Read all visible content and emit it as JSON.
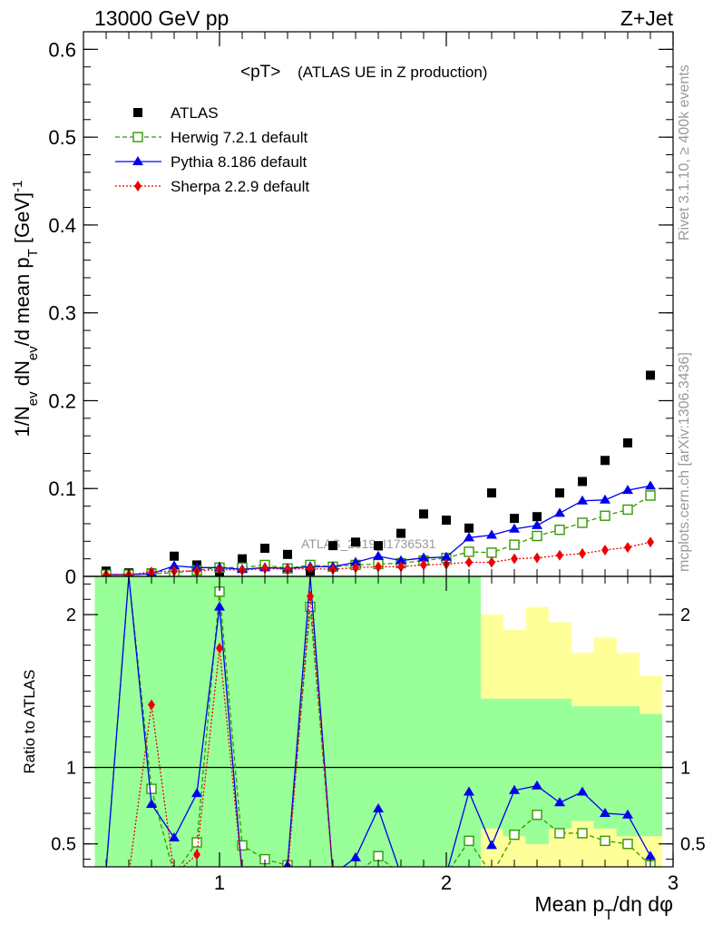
{
  "header": {
    "left": "13000 GeV pp",
    "right": "Z+Jet"
  },
  "side_text": {
    "rivet": "Rivet 3.1.10, ≥ 400k events",
    "mcplots": "mcplots.cern.ch [arXiv:1306.3436]"
  },
  "main_panel": {
    "title_pt": "<pT>",
    "title_desc": "(ATLAS UE in Z production)",
    "watermark": "ATLAS_2019_I1736531",
    "ylabel": "1/N_ev dN_ev/d mean p_T [GeV]^-1"
  },
  "ratio_panel": {
    "ylabel": "Ratio to ATLAS"
  },
  "xaxis_label": "Mean p_T/dη dφ",
  "chart_data": [
    {
      "type": "scatter",
      "title": "<pT> (ATLAS UE in Z production)",
      "xlabel": "Mean p_T/dη dφ",
      "ylabel": "1/N_ev dN_ev/d mean p_T [GeV]^-1",
      "xlim": [
        0.4,
        3.0
      ],
      "ylim": [
        0.0,
        0.62
      ],
      "xticks": [
        1,
        2,
        3
      ],
      "xtick_labels": [
        "1",
        "2",
        "3"
      ],
      "yticks": [
        0,
        0.1,
        0.2,
        0.3,
        0.4,
        0.5,
        0.6
      ],
      "ytick_labels": [
        "0",
        "0.1",
        "0.2",
        "0.3",
        "0.4",
        "0.5",
        "0.6"
      ],
      "legend_position": "top-left",
      "x": [
        0.5,
        0.6,
        0.7,
        0.8,
        0.9,
        1.0,
        1.1,
        1.2,
        1.3,
        1.4,
        1.5,
        1.6,
        1.7,
        1.8,
        1.9,
        2.0,
        2.1,
        2.2,
        2.3,
        2.4,
        2.5,
        2.6,
        2.7,
        2.8,
        2.9
      ],
      "series": [
        {
          "name": "ATLAS",
          "color": "#000000",
          "marker": "square",
          "values": [
            0.006,
            0.004,
            0.004,
            0.023,
            0.013,
            0.005,
            0.02,
            0.032,
            0.025,
            0.006,
            0.035,
            0.039,
            0.035,
            0.049,
            0.071,
            0.064,
            0.055,
            0.095,
            0.066,
            0.068,
            0.095,
            0.108,
            0.132,
            0.152,
            0.229
          ]
        },
        {
          "name": "Herwig 7.2.1 default",
          "color": "#339900",
          "marker": "open-square",
          "line": "dashed",
          "values": [
            0.002,
            0.002,
            0.003,
            0.004,
            0.007,
            0.01,
            0.01,
            0.013,
            0.009,
            0.013,
            0.011,
            0.013,
            0.014,
            0.015,
            0.018,
            0.021,
            0.028,
            0.027,
            0.036,
            0.046,
            0.053,
            0.061,
            0.069,
            0.076,
            0.092
          ]
        },
        {
          "name": "Pythia 8.186 default",
          "color": "#0000ee",
          "marker": "triangle",
          "line": "solid",
          "values": [
            0.002,
            0.002,
            0.003,
            0.012,
            0.01,
            0.01,
            0.008,
            0.01,
            0.009,
            0.011,
            0.011,
            0.016,
            0.023,
            0.018,
            0.021,
            0.022,
            0.044,
            0.047,
            0.054,
            0.058,
            0.072,
            0.086,
            0.087,
            0.098,
            0.103
          ]
        },
        {
          "name": "Sherpa 2.2.9 default",
          "color": "#ee0000",
          "marker": "diamond",
          "line": "dotted",
          "values": [
            0.002,
            0.002,
            0.005,
            0.006,
            0.006,
            0.008,
            0.007,
            0.009,
            0.008,
            0.009,
            0.008,
            0.01,
            0.011,
            0.011,
            0.013,
            0.014,
            0.016,
            0.016,
            0.02,
            0.021,
            0.024,
            0.026,
            0.03,
            0.033,
            0.039
          ]
        }
      ]
    },
    {
      "type": "line",
      "ylabel": "Ratio to ATLAS",
      "xlim": [
        0.4,
        3.0
      ],
      "ylim": [
        0.35,
        2.25
      ],
      "yticks": [
        0.5,
        1,
        2
      ],
      "ytick_labels": [
        "0.5",
        "1",
        "2"
      ],
      "reference_line": 1,
      "x": [
        0.5,
        0.6,
        0.7,
        0.8,
        0.9,
        1.0,
        1.1,
        1.2,
        1.3,
        1.4,
        1.5,
        1.6,
        1.7,
        1.8,
        1.9,
        2.0,
        2.1,
        2.2,
        2.3,
        2.4,
        2.5,
        2.6,
        2.7,
        2.8,
        2.9
      ],
      "bands": [
        {
          "name": "yellow",
          "color": "#ffff99",
          "ranges": [
            [
              0.35,
              2.25
            ],
            [
              0.35,
              2.25
            ],
            [
              0.35,
              2.25
            ],
            [
              0.35,
              2.25
            ],
            [
              0.35,
              2.25
            ],
            [
              0.35,
              2.25
            ],
            [
              0.35,
              2.25
            ],
            [
              0.35,
              2.25
            ],
            [
              0.35,
              2.1
            ],
            [
              0.35,
              2.25
            ],
            [
              0.35,
              2.25
            ],
            [
              0.35,
              2.25
            ],
            [
              0.35,
              2.25
            ],
            [
              0.35,
              2.15
            ],
            [
              0.35,
              2.13
            ],
            [
              0.35,
              2.13
            ],
            [
              0.35,
              2.2
            ],
            [
              0.35,
              2.0
            ],
            [
              0.35,
              1.9
            ],
            [
              0.35,
              2.05
            ],
            [
              0.35,
              1.95
            ],
            [
              0.35,
              1.75
            ],
            [
              0.35,
              1.85
            ],
            [
              0.35,
              1.75
            ],
            [
              0.35,
              1.6
            ]
          ]
        },
        {
          "name": "green",
          "color": "#99ff99",
          "ranges": [
            [
              0.35,
              2.25
            ],
            [
              0.35,
              2.25
            ],
            [
              0.35,
              2.25
            ],
            [
              0.35,
              2.25
            ],
            [
              0.35,
              2.25
            ],
            [
              0.35,
              2.25
            ],
            [
              0.35,
              2.25
            ],
            [
              0.35,
              2.25
            ],
            [
              0.35,
              2.25
            ],
            [
              0.35,
              2.25
            ],
            [
              0.35,
              2.25
            ],
            [
              0.35,
              2.25
            ],
            [
              0.35,
              2.25
            ],
            [
              0.35,
              2.25
            ],
            [
              0.35,
              2.25
            ],
            [
              0.35,
              2.25
            ],
            [
              0.35,
              2.25
            ],
            [
              0.6,
              1.45
            ],
            [
              0.55,
              1.45
            ],
            [
              0.5,
              1.45
            ],
            [
              0.6,
              1.45
            ],
            [
              0.65,
              1.4
            ],
            [
              0.6,
              1.4
            ],
            [
              0.55,
              1.4
            ],
            [
              0.55,
              1.35
            ]
          ]
        }
      ],
      "series": [
        {
          "name": "Herwig 7.2.1 default",
          "color": "#339900",
          "marker": "open-square",
          "line": "dashed",
          "values": [
            0.33,
            2.25,
            0.86,
            0.3,
            0.51,
            2.15,
            0.49,
            0.4,
            0.36,
            2.05,
            0.31,
            0.3,
            0.42,
            0.3,
            0.3,
            0.3,
            0.52,
            0.3,
            0.56,
            0.69,
            0.57,
            0.57,
            0.52,
            0.5,
            0.36
          ]
        },
        {
          "name": "Pythia 8.186 default",
          "color": "#0000ee",
          "marker": "triangle",
          "line": "solid",
          "values": [
            0.33,
            2.25,
            0.76,
            0.54,
            0.83,
            2.05,
            0.3,
            0.3,
            0.36,
            2.25,
            0.3,
            0.41,
            0.73,
            0.3,
            0.3,
            0.3,
            0.84,
            0.49,
            0.85,
            0.88,
            0.77,
            0.84,
            0.7,
            0.69,
            0.42
          ]
        },
        {
          "name": "Sherpa 2.2.9 default",
          "color": "#ee0000",
          "marker": "diamond",
          "line": "dotted",
          "values": [
            0.3,
            0.3,
            1.41,
            0.3,
            0.43,
            1.78,
            0.3,
            0.3,
            0.3,
            2.12,
            0.3,
            0.3,
            0.3,
            0.3,
            0.3,
            0.3,
            0.3,
            0.3,
            0.3,
            0.3,
            0.3,
            0.3,
            0.3,
            0.3,
            0.3
          ]
        }
      ]
    }
  ]
}
